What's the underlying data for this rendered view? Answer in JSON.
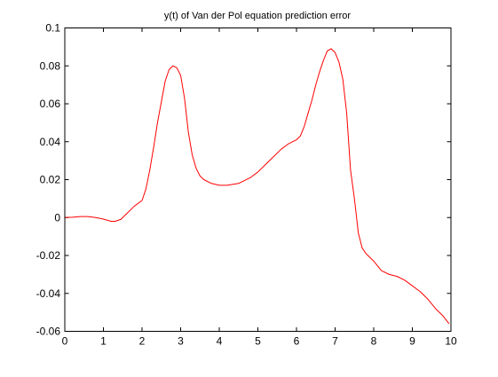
{
  "chart_data": {
    "type": "line",
    "title": "y(t) of Van der Pol equation prediction error",
    "xlabel": "",
    "ylabel": "",
    "xlim": [
      0,
      10
    ],
    "ylim": [
      -0.06,
      0.1
    ],
    "xticks": [
      0,
      1,
      2,
      3,
      4,
      5,
      6,
      7,
      8,
      9,
      10
    ],
    "xtick_labels": [
      "0",
      "1",
      "2",
      "3",
      "4",
      "5",
      "6",
      "7",
      "8",
      "9",
      "10"
    ],
    "yticks": [
      -0.06,
      -0.04,
      -0.02,
      0,
      0.02,
      0.04,
      0.06,
      0.08,
      0.1
    ],
    "ytick_labels": [
      "-0.06",
      "-0.04",
      "-0.02",
      "0",
      "0.02",
      "0.04",
      "0.06",
      "0.08",
      "0.1"
    ],
    "grid": false,
    "line_color": "#ff0000",
    "series": [
      {
        "x": [
          0,
          0.2,
          0.4,
          0.6,
          0.8,
          1.0,
          1.2,
          1.3,
          1.45,
          1.6,
          1.8,
          2.0,
          2.1,
          2.2,
          2.3,
          2.4,
          2.5,
          2.6,
          2.7,
          2.8,
          2.9,
          3.0,
          3.1,
          3.2,
          3.3,
          3.4,
          3.5,
          3.6,
          3.8,
          4.0,
          4.2,
          4.5,
          4.8,
          5.0,
          5.2,
          5.4,
          5.6,
          5.8,
          6.0,
          6.1,
          6.2,
          6.3,
          6.4,
          6.5,
          6.6,
          6.7,
          6.8,
          6.9,
          7.0,
          7.1,
          7.2,
          7.3,
          7.4,
          7.5,
          7.6,
          7.7,
          7.8,
          7.9,
          8.0,
          8.2,
          8.4,
          8.6,
          8.8,
          9.0,
          9.2,
          9.4,
          9.6,
          9.8,
          9.95
        ],
        "y": [
          0,
          0.0002,
          0.0005,
          0.0005,
          0,
          -0.0008,
          -0.002,
          -0.002,
          -0.001,
          0.002,
          0.006,
          0.009,
          0.015,
          0.025,
          0.037,
          0.05,
          0.061,
          0.072,
          0.078,
          0.08,
          0.079,
          0.075,
          0.063,
          0.045,
          0.033,
          0.026,
          0.022,
          0.02,
          0.018,
          0.017,
          0.017,
          0.018,
          0.021,
          0.024,
          0.028,
          0.032,
          0.036,
          0.039,
          0.041,
          0.043,
          0.048,
          0.055,
          0.062,
          0.07,
          0.077,
          0.083,
          0.088,
          0.089,
          0.087,
          0.082,
          0.073,
          0.055,
          0.025,
          0.01,
          -0.008,
          -0.016,
          -0.019,
          -0.021,
          -0.023,
          -0.028,
          -0.03,
          -0.031,
          -0.033,
          -0.036,
          -0.039,
          -0.043,
          -0.048,
          -0.052,
          -0.056
        ]
      }
    ]
  }
}
